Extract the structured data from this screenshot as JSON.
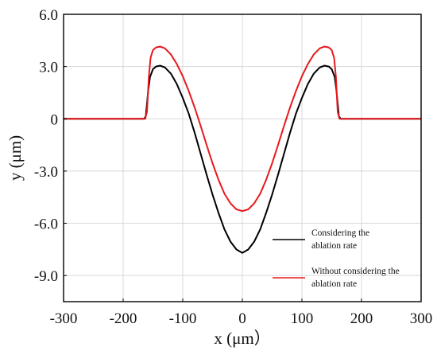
{
  "chart_data": {
    "type": "line",
    "xlabel": "x (μm）",
    "ylabel": "y (μm)",
    "xlim": [
      -300,
      300
    ],
    "ylim": [
      -10.5,
      6.0
    ],
    "x_ticks": [
      -300,
      -200,
      -100,
      0,
      100,
      200,
      300
    ],
    "x_tick_labels": [
      "-300",
      "-200",
      "-100",
      "0",
      "100",
      "200",
      "300"
    ],
    "y_ticks": [
      6.0,
      3.0,
      0,
      -3.0,
      -6.0,
      -9.0
    ],
    "y_tick_labels": [
      "6.0",
      "3.0",
      "0",
      "-3.0",
      "-6.0",
      "-9.0"
    ],
    "grid": true,
    "legend_position": "bottom-right",
    "series": [
      {
        "name": "Considering the ablation rate",
        "legend_lines": [
          "Considering the",
          "ablation rate"
        ],
        "color": "#000000",
        "x": [
          -300,
          -165,
          -162,
          -158,
          -155,
          -150,
          -145,
          -138,
          -130,
          -120,
          -110,
          -100,
          -90,
          -80,
          -70,
          -60,
          -50,
          -40,
          -30,
          -20,
          -10,
          0,
          10,
          20,
          30,
          40,
          50,
          60,
          70,
          80,
          90,
          100,
          110,
          120,
          130,
          138,
          145,
          150,
          155,
          158,
          162,
          165,
          300
        ],
        "y": [
          0,
          0,
          0.15,
          1.6,
          2.4,
          2.85,
          3.0,
          3.05,
          2.95,
          2.6,
          2.0,
          1.2,
          0.3,
          -0.8,
          -2.0,
          -3.2,
          -4.35,
          -5.4,
          -6.35,
          -7.05,
          -7.5,
          -7.7,
          -7.5,
          -7.05,
          -6.35,
          -5.4,
          -4.35,
          -3.2,
          -2.0,
          -0.8,
          0.3,
          1.2,
          2.0,
          2.6,
          2.95,
          3.05,
          3.0,
          2.85,
          2.4,
          1.6,
          0.15,
          0,
          0
        ]
      },
      {
        "name": "Without considering the ablation rate",
        "legend_lines": [
          "Without considering the",
          "ablation rate"
        ],
        "color": "#e8191c",
        "x": [
          -300,
          -163,
          -160,
          -157,
          -154,
          -150,
          -145,
          -138,
          -130,
          -120,
          -110,
          -100,
          -90,
          -80,
          -70,
          -60,
          -50,
          -40,
          -30,
          -20,
          -10,
          0,
          10,
          20,
          30,
          40,
          50,
          60,
          70,
          80,
          90,
          100,
          110,
          120,
          130,
          138,
          145,
          150,
          154,
          157,
          160,
          163,
          300
        ],
        "y": [
          0,
          0,
          0.4,
          2.4,
          3.5,
          3.95,
          4.1,
          4.15,
          4.05,
          3.7,
          3.15,
          2.45,
          1.6,
          0.65,
          -0.4,
          -1.5,
          -2.55,
          -3.5,
          -4.3,
          -4.85,
          -5.2,
          -5.3,
          -5.2,
          -4.85,
          -4.3,
          -3.5,
          -2.55,
          -1.5,
          -0.4,
          0.65,
          1.6,
          2.45,
          3.15,
          3.7,
          4.05,
          4.15,
          4.1,
          3.95,
          3.5,
          2.4,
          0.4,
          0,
          0
        ]
      }
    ]
  }
}
